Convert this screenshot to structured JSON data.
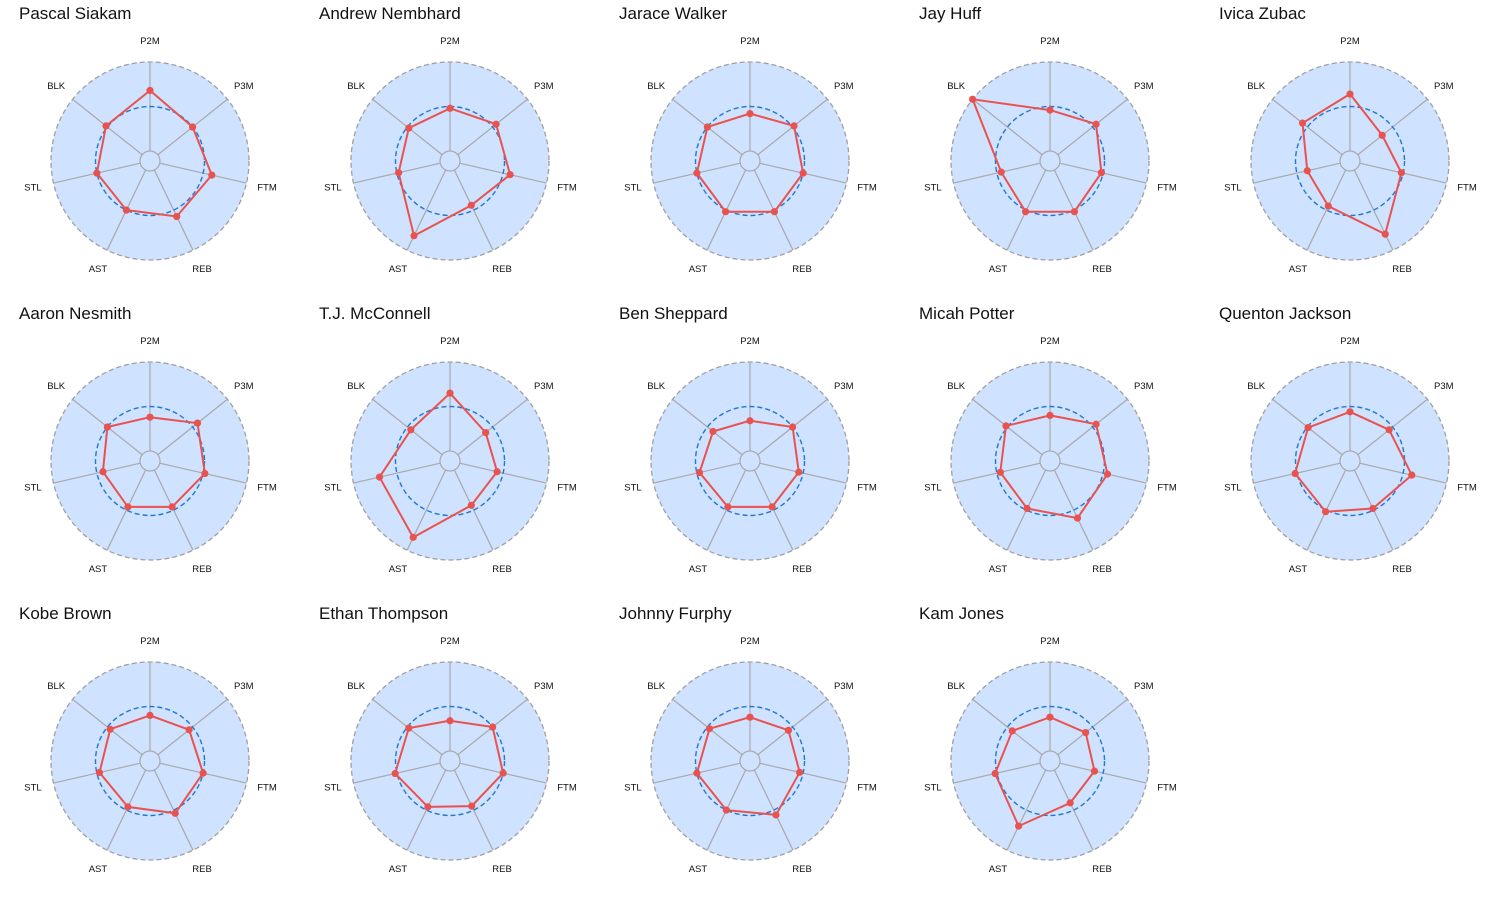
{
  "chart_data": {
    "type": "radar",
    "axes": [
      "P2M",
      "P3M",
      "FTM",
      "REB",
      "AST",
      "STL",
      "BLK"
    ],
    "rmax": 1.0,
    "reference_level": 0.5,
    "colors": {
      "background": "#cfe2ff",
      "series": "#e8534f",
      "reference": "#1f77d4",
      "spokes": "#a9a9a9"
    },
    "players": [
      {
        "name": "Pascal Siakam",
        "values": [
          0.68,
          0.5,
          0.6,
          0.58,
          0.5,
          0.5,
          0.52
        ]
      },
      {
        "name": "Andrew Nembhard",
        "values": [
          0.48,
          0.55,
          0.58,
          0.44,
          0.82,
          0.48,
          0.48
        ]
      },
      {
        "name": "Jarace Walker",
        "values": [
          0.42,
          0.52,
          0.5,
          0.52,
          0.52,
          0.5,
          0.5
        ]
      },
      {
        "name": "Jay Huff",
        "values": [
          0.46,
          0.55,
          0.48,
          0.52,
          0.52,
          0.45,
          1.0
        ]
      },
      {
        "name": "Ivica Zubac",
        "values": [
          0.64,
          0.35,
          0.48,
          0.8,
          0.45,
          0.38,
          0.57
        ]
      },
      {
        "name": "Aaron Nesmith",
        "values": [
          0.38,
          0.57,
          0.52,
          0.46,
          0.46,
          0.43,
          0.5
        ]
      },
      {
        "name": "T.J. McConnell",
        "values": [
          0.65,
          0.4,
          0.43,
          0.44,
          0.84,
          0.7,
          0.45
        ]
      },
      {
        "name": "Ben Sheppard",
        "values": [
          0.34,
          0.5,
          0.45,
          0.46,
          0.46,
          0.47,
          0.42
        ]
      },
      {
        "name": "Micah Potter",
        "values": [
          0.4,
          0.55,
          0.55,
          0.6,
          0.48,
          0.46,
          0.52
        ]
      },
      {
        "name": "Quenton Jackson",
        "values": [
          0.44,
          0.45,
          0.6,
          0.48,
          0.52,
          0.52,
          0.49
        ]
      },
      {
        "name": "Kobe Brown",
        "values": [
          0.4,
          0.45,
          0.5,
          0.54,
          0.46,
          0.47,
          0.46
        ]
      },
      {
        "name": "Ethan Thompson",
        "values": [
          0.34,
          0.5,
          0.5,
          0.45,
          0.46,
          0.52,
          0.48
        ]
      },
      {
        "name": "Johnny Furphy",
        "values": [
          0.38,
          0.44,
          0.46,
          0.56,
          0.5,
          0.5,
          0.47
        ]
      },
      {
        "name": "Kam Jones",
        "values": [
          0.38,
          0.4,
          0.4,
          0.41,
          0.7,
          0.52,
          0.43
        ]
      }
    ]
  }
}
